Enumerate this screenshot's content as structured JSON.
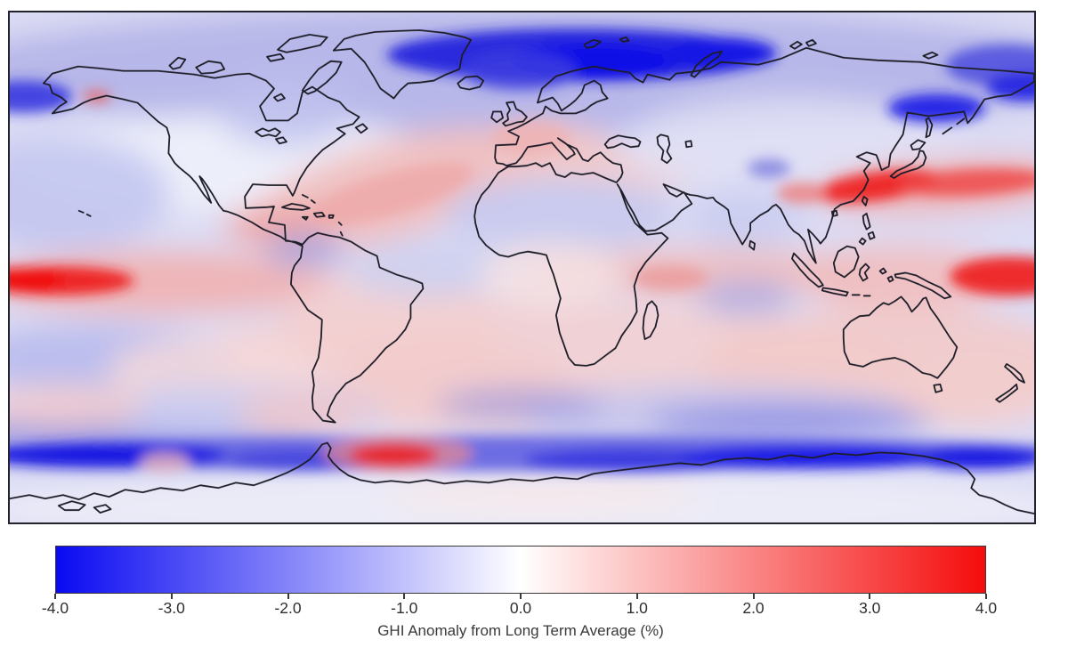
{
  "chart_data": {
    "type": "heatmap",
    "subtype": "global-anomaly-map",
    "projection": "equirectangular world map (-180..180 lon, -90..90 lat)",
    "variable": "GHI anomaly from long-term average",
    "units": "%",
    "colorbar": {
      "label": "GHI Anomaly from Long Term Average (%)",
      "orientation": "horizontal",
      "min": -4.0,
      "max": 4.0,
      "ticks": [
        "-4.0",
        "-3.0",
        "-2.0",
        "-1.0",
        "0.0",
        "1.0",
        "2.0",
        "3.0",
        "4.0"
      ],
      "colormap": "blue-white-red",
      "colors": {
        "min": "#0a0af2",
        "mid": "#ffffff",
        "max": "#f50c0c"
      },
      "border_color": "#3a3a3a"
    },
    "layout": {
      "frame_color": "#23232e",
      "land_outline_color": "#1d1d28",
      "background": "#ffffff",
      "base_ocean_tint": "#dcdcf4",
      "grid": false,
      "legend": "colorbar-bottom"
    },
    "regions": [
      {
        "name": "Arctic Ocean / Barents-Kara Seas",
        "anomaly_pct": -4.0
      },
      {
        "name": "Norwegian Sea north of Scandinavia",
        "anomaly_pct": -3.5
      },
      {
        "name": "Sea of Okhotsk",
        "anomaly_pct": -3.5
      },
      {
        "name": "Northeast Pacific / Bering (top-right corner)",
        "anomaly_pct": -3.0
      },
      {
        "name": "Equatorial East Pacific band (left edge)",
        "anomaly_pct": 3.5
      },
      {
        "name": "Equatorial West Pacific band (right edge)",
        "anomaly_pct": 3.5
      },
      {
        "name": "Northwest Pacific off Japan / Korea",
        "anomaly_pct": 3.5
      },
      {
        "name": "North Atlantic subtropical band toward Europe",
        "anomaly_pct": 1.5
      },
      {
        "name": "Gulf of Mexico / Caribbean",
        "anomaly_pct": 1.5
      },
      {
        "name": "Western Europe / UK",
        "anomaly_pct": 1.0
      },
      {
        "name": "Equatorial Indian Ocean",
        "anomaly_pct": 1.0
      },
      {
        "name": "Southern subtropical oceans / Australia interior",
        "anomaly_pct": 1.0
      },
      {
        "name": "Southern Ocean circumpolar band",
        "anomaly_pct": -3.0
      },
      {
        "name": "Scotia Sea south of South America",
        "anomaly_pct": 3.0
      },
      {
        "name": "Siberia / northern Eurasia",
        "anomaly_pct": -1.0
      },
      {
        "name": "Sahara / North Africa",
        "anomaly_pct": -0.5
      },
      {
        "name": "India",
        "anomaly_pct": -0.8
      },
      {
        "name": "Antarctica interior",
        "anomaly_pct": 0.2
      }
    ]
  }
}
